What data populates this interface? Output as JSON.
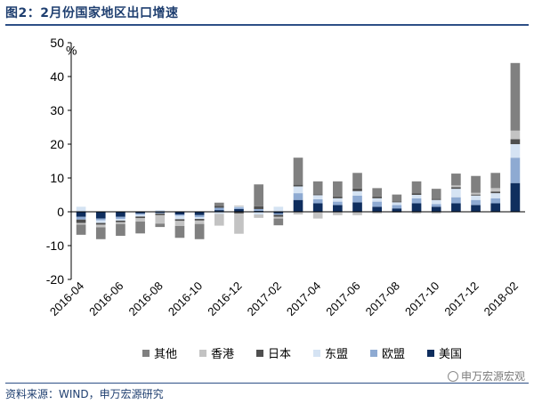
{
  "header": {
    "title": "图2：2月份国家地区出口增速"
  },
  "footer": {
    "source": "资料来源：WIND，申万宏源研究",
    "watermark": "申万宏源宏观"
  },
  "colors": {
    "其他": "#808080",
    "香港": "#c3c3c3",
    "日本": "#4f4f4f",
    "东盟": "#d5e3f3",
    "欧盟": "#8eaad2",
    "美国": "#0f2e5e"
  },
  "chart_data": {
    "type": "bar",
    "stacked": true,
    "ylabel": "%",
    "ylim": [
      -20,
      50
    ],
    "yticks": [
      -20,
      -10,
      0,
      10,
      20,
      30,
      40,
      50
    ],
    "categories": [
      "2016-04",
      "2016-05",
      "2016-06",
      "2016-07",
      "2016-08",
      "2016-09",
      "2016-10",
      "2016-11",
      "2016-12",
      "2017-01",
      "2017-02",
      "2017-03",
      "2017-04",
      "2017-05",
      "2017-06",
      "2017-07",
      "2017-08",
      "2017-09",
      "2017-10",
      "2017-11",
      "2017-12",
      "2018-01",
      "2018-02"
    ],
    "xtick_labels": [
      "2016-04",
      "2016-06",
      "2016-08",
      "2016-10",
      "2016-12",
      "2017-02",
      "2017-04",
      "2017-06",
      "2017-08",
      "2017-10",
      "2017-12",
      "2018-02"
    ],
    "legend_position": "bottom",
    "series": [
      {
        "name": "美国",
        "values": [
          -1.5,
          -2.0,
          -1.5,
          -0.5,
          -0.3,
          -0.8,
          -1.0,
          0.5,
          0.8,
          0.3,
          -0.5,
          3.5,
          2.5,
          2.0,
          2.8,
          1.5,
          1.0,
          2.5,
          1.5,
          2.5,
          2.0,
          2.5,
          8.5
        ]
      },
      {
        "name": "欧盟",
        "values": [
          -0.8,
          -0.5,
          -0.6,
          -0.4,
          -0.2,
          -0.4,
          -0.6,
          0.7,
          0.5,
          0.5,
          -0.4,
          2.0,
          1.2,
          1.0,
          2.0,
          1.5,
          1.0,
          1.5,
          0.8,
          1.8,
          1.5,
          1.5,
          7.5
        ]
      },
      {
        "name": "东盟",
        "values": [
          1.5,
          -0.8,
          -0.5,
          -0.5,
          0.5,
          -1.0,
          -0.5,
          -0.6,
          0.3,
          -0.8,
          1.5,
          2.0,
          1.2,
          1.0,
          1.3,
          1.0,
          0.8,
          1.0,
          1.2,
          2.5,
          1.3,
          1.5,
          4.0
        ]
      },
      {
        "name": "日本",
        "values": [
          -1.0,
          -0.5,
          -0.5,
          -0.5,
          -0.5,
          -0.5,
          -0.5,
          0.5,
          -0.5,
          0.8,
          -0.6,
          0.5,
          0.3,
          0.5,
          0.8,
          0.5,
          0.3,
          0.5,
          0.3,
          0.5,
          0.3,
          0.5,
          1.5
        ]
      },
      {
        "name": "香港",
        "values": [
          -0.5,
          -0.8,
          -0.5,
          -1.0,
          -2.5,
          -1.5,
          -1.0,
          -3.5,
          -6.0,
          -1.0,
          -0.5,
          -0.8,
          -2.0,
          -1.0,
          -1.0,
          -0.5,
          -0.3,
          -0.5,
          -0.5,
          0.5,
          0.5,
          1.0,
          2.5
        ]
      },
      {
        "name": "其他",
        "values": [
          -3.0,
          -3.5,
          -3.5,
          -3.5,
          -1.0,
          -3.5,
          -4.5,
          1.0,
          0.1,
          6.5,
          -2.0,
          8.0,
          3.8,
          4.5,
          4.6,
          2.5,
          2.0,
          3.5,
          3.0,
          3.5,
          5.0,
          4.5,
          20.0
        ]
      }
    ]
  }
}
